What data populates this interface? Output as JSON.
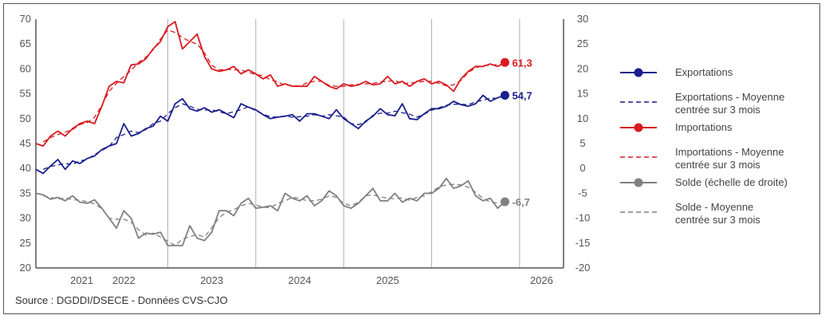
{
  "chart_data": {
    "type": "line",
    "left_axis": {
      "min": 20,
      "max": 70,
      "ticks": [
        "70",
        "65",
        "60",
        "55",
        "50",
        "45",
        "40",
        "35",
        "30",
        "25",
        "20"
      ]
    },
    "right_axis": {
      "min": -20,
      "max": 30,
      "ticks": [
        "30",
        "25",
        "20",
        "15",
        "10",
        "5",
        "0",
        "-5",
        "-10",
        "-15",
        "-20"
      ]
    },
    "x_labels": [
      "2021",
      "2022",
      "2023",
      "2024",
      "2025",
      "2026"
    ],
    "x_start": "2020-07",
    "grid": "vertical separators between years",
    "legend_position": "right",
    "series": [
      {
        "name": "Exportations",
        "axis": "left",
        "color": "#1b1f8c",
        "style": "solid",
        "values": [
          39.8,
          39.0,
          40.5,
          41.8,
          39.8,
          41.5,
          41.0,
          42.0,
          42.5,
          43.8,
          44.5,
          45.0,
          49.0,
          46.5,
          47.0,
          48.0,
          48.5,
          50.5,
          49.5,
          53.0,
          54.0,
          52.0,
          51.5,
          52.2,
          51.3,
          51.8,
          51.0,
          50.2,
          53.0,
          52.3,
          51.8,
          50.8,
          50.0,
          50.3,
          50.5,
          50.8,
          49.5,
          51.0,
          51.0,
          50.5,
          50.0,
          51.8,
          50.0,
          49.0,
          48.0,
          49.5,
          50.5,
          52.0,
          50.8,
          50.6,
          53.0,
          50.0,
          49.8,
          51.0,
          52.0,
          52.0,
          52.5,
          53.5,
          52.8,
          52.5,
          53.0,
          54.7,
          53.5,
          54.2,
          54.7
        ]
      },
      {
        "name": "Exportations - Moyenne centrée sur 3 mois",
        "axis": "left",
        "color": "#1b1f8c",
        "style": "dashed",
        "values": [
          null,
          39.8,
          40.4,
          40.7,
          41.0,
          40.8,
          41.5,
          41.8,
          42.8,
          43.6,
          44.4,
          46.2,
          46.8,
          47.5,
          47.2,
          47.8,
          49.0,
          49.5,
          51.0,
          52.2,
          53.0,
          52.5,
          51.9,
          51.7,
          51.8,
          51.4,
          51.0,
          51.4,
          51.8,
          52.4,
          51.6,
          50.9,
          50.4,
          50.3,
          50.5,
          50.3,
          50.4,
          50.5,
          50.8,
          50.5,
          50.8,
          50.6,
          50.3,
          49.0,
          48.8,
          49.3,
          50.7,
          51.1,
          51.1,
          51.5,
          51.2,
          50.9,
          50.3,
          50.9,
          51.7,
          52.2,
          52.7,
          52.9,
          52.9,
          52.8,
          53.4,
          53.7,
          54.1,
          54.1,
          null
        ]
      },
      {
        "name": "Importations",
        "axis": "left",
        "color": "#d91a20",
        "style": "solid",
        "values": [
          45.0,
          44.5,
          46.5,
          47.5,
          46.5,
          48.0,
          49.0,
          49.5,
          49.0,
          52.5,
          56.5,
          57.5,
          57.2,
          60.8,
          61.0,
          62.0,
          64.0,
          65.5,
          68.5,
          69.5,
          64.0,
          65.5,
          67.0,
          62.5,
          60.0,
          59.5,
          59.8,
          60.5,
          59.0,
          59.8,
          59.0,
          58.0,
          58.8,
          56.5,
          57.0,
          56.5,
          56.5,
          56.5,
          58.5,
          57.5,
          56.5,
          56.0,
          57.0,
          56.5,
          56.8,
          57.5,
          56.8,
          57.0,
          58.5,
          57.0,
          57.5,
          56.5,
          57.5,
          58.0,
          57.0,
          57.5,
          56.8,
          55.5,
          58.0,
          59.5,
          60.5,
          60.5,
          61.0,
          60.5,
          61.3
        ]
      },
      {
        "name": "Importations - Moyenne centrée sur 3 mois",
        "axis": "left",
        "color": "#d91a20",
        "style": "dashed",
        "values": [
          null,
          45.3,
          46.2,
          46.8,
          47.3,
          47.8,
          48.8,
          49.2,
          50.3,
          52.7,
          55.5,
          57.1,
          58.5,
          59.7,
          61.3,
          62.3,
          63.8,
          66.0,
          67.8,
          67.3,
          66.3,
          65.5,
          65.0,
          63.2,
          60.7,
          59.8,
          59.9,
          59.8,
          59.8,
          59.3,
          58.9,
          58.6,
          57.8,
          57.4,
          56.7,
          56.7,
          56.5,
          57.2,
          57.5,
          57.5,
          56.7,
          56.5,
          56.5,
          56.8,
          56.9,
          57.0,
          57.1,
          57.4,
          57.5,
          57.7,
          57.0,
          57.2,
          57.3,
          57.5,
          57.5,
          57.1,
          56.6,
          56.8,
          57.7,
          59.3,
          60.2,
          60.7,
          60.7,
          60.9,
          null
        ]
      },
      {
        "name": "Solde (échelle de droite)",
        "axis": "right",
        "color": "#808080",
        "style": "solid",
        "values": [
          -5.0,
          -5.3,
          -6.2,
          -5.8,
          -6.5,
          -5.5,
          -6.8,
          -7.0,
          -6.3,
          -8.0,
          -10.0,
          -12.0,
          -8.5,
          -10.0,
          -14.0,
          -13.0,
          -13.2,
          -12.8,
          -15.5,
          -15.5,
          -15.5,
          -11.5,
          -14.0,
          -14.5,
          -12.8,
          -8.5,
          -8.5,
          -9.5,
          -7.0,
          -6.0,
          -8.0,
          -7.8,
          -7.5,
          -8.5,
          -5.0,
          -6.0,
          -6.5,
          -5.5,
          -7.5,
          -6.5,
          -4.5,
          -5.5,
          -7.5,
          -8.0,
          -7.0,
          -5.5,
          -4.0,
          -6.5,
          -6.5,
          -5.0,
          -6.8,
          -6.0,
          -6.5,
          -5.0,
          -5.0,
          -4.0,
          -2.0,
          -4.0,
          -3.5,
          -2.5,
          -5.5,
          -6.5,
          -6.0,
          -8.0,
          -6.7
        ]
      },
      {
        "name": "Solde - Moyenne centrée sur 3 mois",
        "axis": "right",
        "color": "#808080",
        "style": "dashed",
        "values": [
          null,
          -5.5,
          -5.8,
          -6.2,
          -5.9,
          -6.3,
          -6.4,
          -6.7,
          -7.1,
          -8.1,
          -10.0,
          -10.2,
          -10.2,
          -10.8,
          -12.3,
          -13.4,
          -13.0,
          -13.8,
          -14.6,
          -15.5,
          -14.2,
          -13.7,
          -13.3,
          -13.8,
          -11.9,
          -9.9,
          -8.8,
          -8.3,
          -7.5,
          -7.0,
          -7.3,
          -7.8,
          -7.9,
          -7.0,
          -6.5,
          -5.8,
          -6.0,
          -6.5,
          -6.5,
          -6.2,
          -5.5,
          -5.8,
          -7.0,
          -7.5,
          -6.8,
          -5.5,
          -5.3,
          -5.7,
          -6.0,
          -6.1,
          -5.9,
          -6.4,
          -5.8,
          -5.5,
          -4.7,
          -3.7,
          -3.3,
          -3.2,
          -3.3,
          -3.8,
          -4.8,
          -6.0,
          -6.8,
          -6.9,
          null
        ]
      }
    ],
    "end_labels": [
      {
        "series": "Importations",
        "text": "61,3"
      },
      {
        "series": "Exportations",
        "text": "54,7"
      },
      {
        "series": "Solde (échelle de droite)",
        "text": "-6,7"
      }
    ]
  },
  "legend": [
    {
      "lines": [
        "Exportations"
      ],
      "color": "#1b1f8c",
      "style": "marker"
    },
    {
      "lines": [
        "Exportations - Moyenne",
        "centrée sur 3 mois"
      ],
      "color": "#1b1f8c",
      "style": "dashed"
    },
    {
      "lines": [
        "Importations"
      ],
      "color": "#d91a20",
      "style": "marker"
    },
    {
      "lines": [
        "Importations - Moyenne",
        "centrée sur 3 mois"
      ],
      "color": "#d91a20",
      "style": "dashed"
    },
    {
      "lines": [
        "Solde (échelle de droite)"
      ],
      "color": "#808080",
      "style": "marker"
    },
    {
      "lines": [
        "Solde - Moyenne",
        "centrée sur 3 mois"
      ],
      "color": "#808080",
      "style": "dashed"
    }
  ],
  "source": "Source : DGDDI/DSECE - Données CVS-CJO"
}
